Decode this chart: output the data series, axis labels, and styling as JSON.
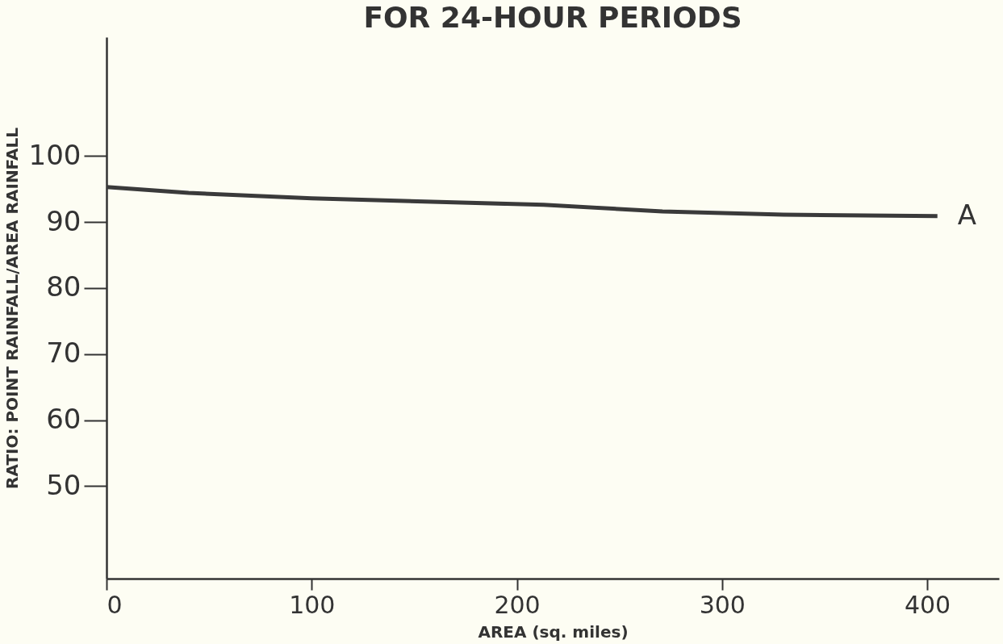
{
  "chart_data": {
    "type": "line",
    "title": "FOR 24-HOUR PERIODS",
    "xlabel": "AREA (sq. miles)",
    "ylabel": "RATIO: POINT RAINFALL/AREA RAINFALL",
    "x": [
      0,
      40,
      100,
      213,
      271,
      330,
      405
    ],
    "series": [
      {
        "name": "A",
        "color": "#3a3a3a",
        "values": [
          95.3,
          94.4,
          93.6,
          92.6,
          91.6,
          91.1,
          90.9
        ]
      }
    ],
    "xlim": [
      0,
      435
    ],
    "xticks": [
      0,
      100,
      200,
      300,
      400
    ],
    "ylim": [
      36,
      118
    ],
    "yticks": [
      50,
      60,
      70,
      80,
      90,
      100
    ],
    "grid": false,
    "legend": false,
    "marker": "none",
    "line_style": "solid"
  }
}
